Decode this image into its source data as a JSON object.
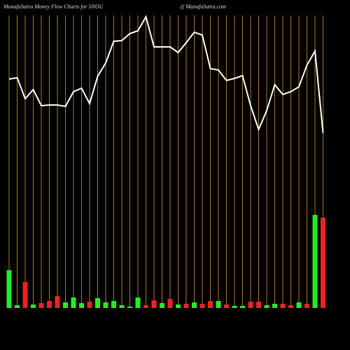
{
  "chart_data": {
    "type": "money-flow",
    "title": "MunafaSutra  Money Flow  Charts for SNOU",
    "subtitle": "(( MunafaSutra.com",
    "categories": [
      null,
      null,
      null,
      null,
      null,
      null,
      null,
      null,
      null,
      null,
      null,
      null,
      null,
      null,
      null,
      null,
      null,
      null,
      null,
      null,
      null,
      null,
      null,
      null,
      null,
      null,
      null,
      null,
      null,
      null,
      null,
      null,
      null,
      null,
      null,
      null,
      null,
      null,
      null,
      null
    ],
    "ylim": [
      0,
      440
    ],
    "line": {
      "color": "#ffffff",
      "values": [
        327,
        329,
        299,
        312,
        289,
        290,
        290,
        288,
        309,
        314,
        292,
        331,
        350,
        381,
        382,
        392,
        396,
        416,
        373,
        373,
        373,
        365,
        379,
        394,
        390,
        342,
        340,
        325,
        328,
        332,
        289,
        255,
        282,
        319,
        305,
        309,
        316,
        347,
        367,
        250
      ]
    },
    "bars": {
      "values": [
        54,
        4,
        37,
        5,
        7,
        10,
        17,
        8,
        15,
        7,
        9,
        14,
        8,
        10,
        4,
        2,
        15,
        4,
        11,
        7,
        13,
        5,
        6,
        8,
        6,
        10,
        10,
        5,
        3,
        3,
        9,
        9,
        4,
        6,
        6,
        4,
        8,
        6,
        133,
        129
      ],
      "colors": [
        "#22ee22",
        "#22ee22",
        "#ee2222",
        "#22ee22",
        "#ee2222",
        "#ee2222",
        "#ee2222",
        "#22ee22",
        "#22ee22",
        "#22ee22",
        "#ee2222",
        "#22ee22",
        "#22ee22",
        "#22ee22",
        "#22ee22",
        "#22ee22",
        "#22ee22",
        "#ee2222",
        "#ee2222",
        "#22ee22",
        "#ee2222",
        "#22ee22",
        "#ee2222",
        "#22ee22",
        "#ee2222",
        "#ee2222",
        "#22ee22",
        "#ee2222",
        "#22ee22",
        "#22ee22",
        "#ee2222",
        "#ee2222",
        "#22ee22",
        "#22ee22",
        "#ee2222",
        "#ee2222",
        "#22ee22",
        "#ee2222",
        "#22ee22",
        "#ee2222"
      ]
    },
    "divider_color": "#b07a1a"
  }
}
